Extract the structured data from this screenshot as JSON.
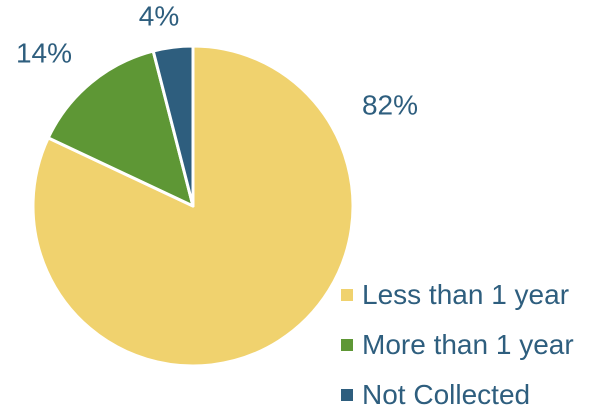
{
  "chart_data": {
    "type": "pie",
    "title": "",
    "categories": [
      "Less than 1 year",
      "More than 1 year",
      "Not Collected"
    ],
    "values": [
      82,
      14,
      4
    ],
    "value_labels": [
      "82%",
      "14%",
      "4%"
    ],
    "colors": [
      "#F0D26E",
      "#5E9735",
      "#2E5E7E"
    ],
    "label_color": "#2E5E7E",
    "slice_border_color": "#FFFFFF",
    "start_angle_deg": 0,
    "direction": "clockwise",
    "legend": {
      "position": "bottom-right",
      "items": [
        {
          "label": "Less than 1 year",
          "color": "#F0D26E"
        },
        {
          "label": "More than 1 year",
          "color": "#5E9735"
        },
        {
          "label": "Not Collected",
          "color": "#2E5E7E"
        }
      ]
    }
  }
}
